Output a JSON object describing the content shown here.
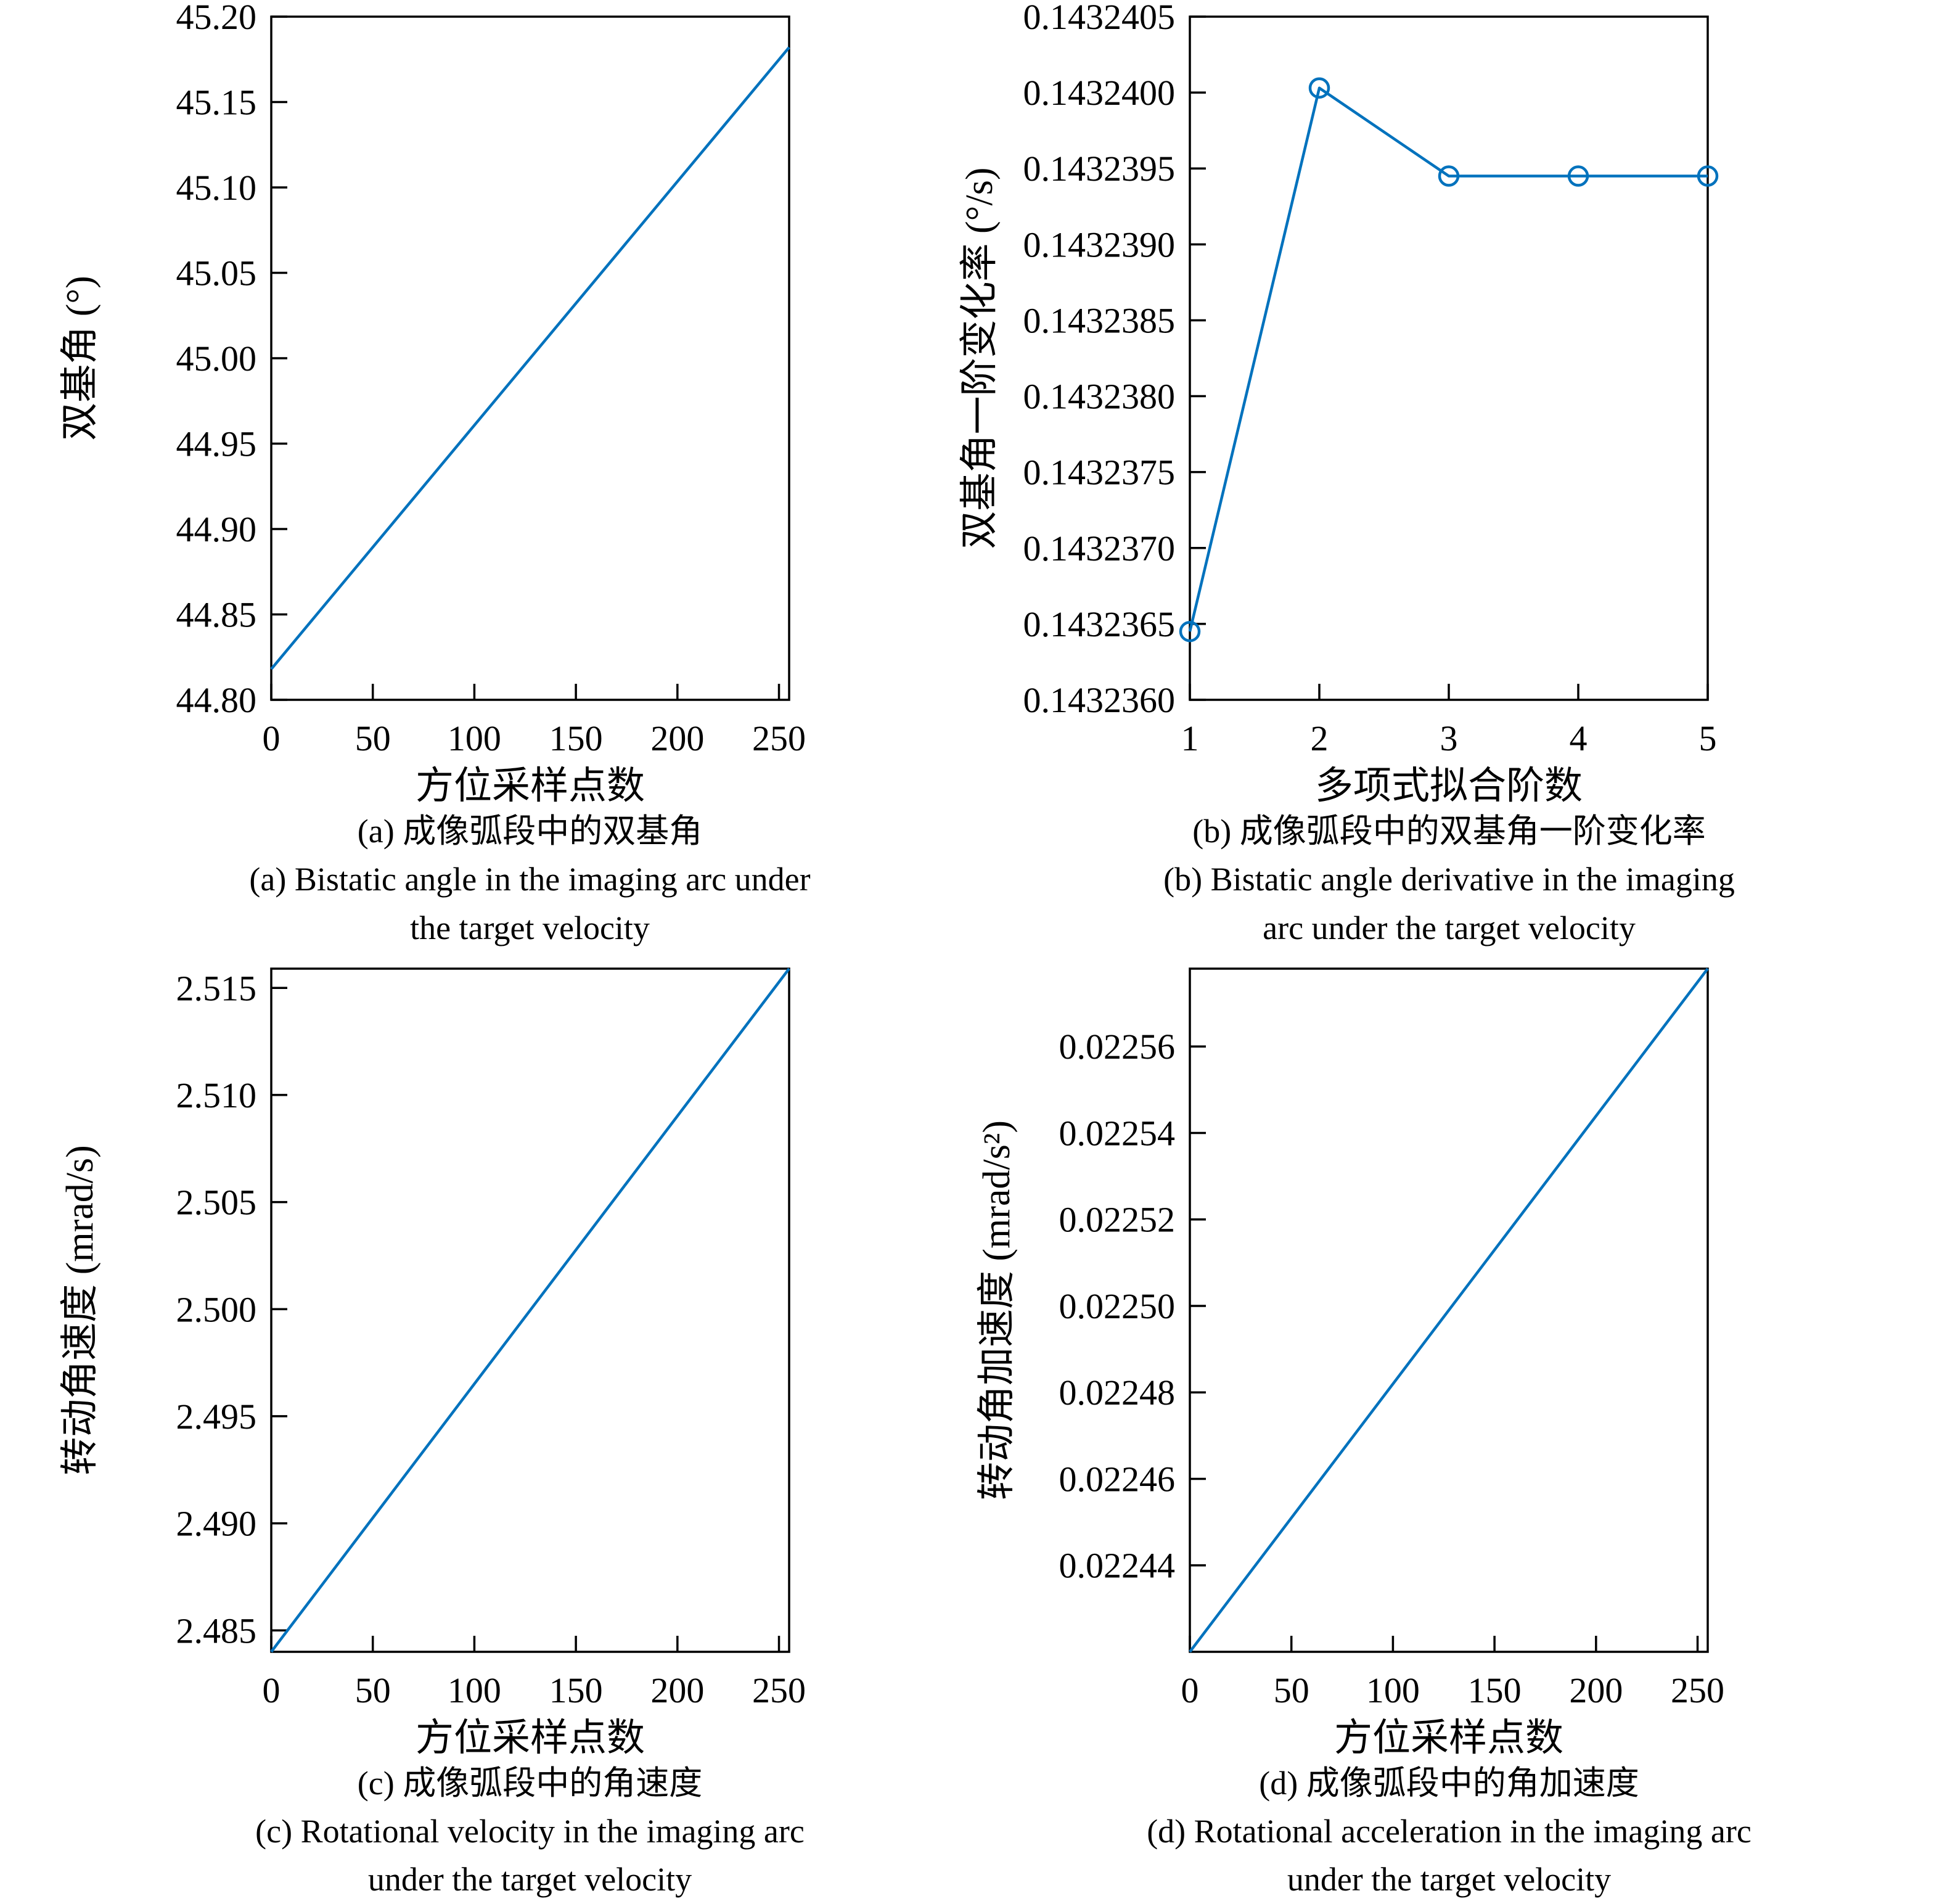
{
  "figure": {
    "background": "#ffffff",
    "accent_color": "#0072BD",
    "axis_color": "#000000"
  },
  "chart_data": [
    {
      "id": "a",
      "type": "line",
      "title": "",
      "xlabel": "方位采样点数",
      "ylabel": "双基角 (°)",
      "xlim": [
        0,
        255
      ],
      "ylim": [
        44.8,
        45.2
      ],
      "grid": false,
      "legend": null,
      "color": "#0072BD",
      "xticks": [
        {
          "v": 0,
          "label": "0"
        },
        {
          "v": 50,
          "label": "50"
        },
        {
          "v": 100,
          "label": "100"
        },
        {
          "v": 150,
          "label": "150"
        },
        {
          "v": 200,
          "label": "200"
        },
        {
          "v": 250,
          "label": "250"
        }
      ],
      "yticks": [
        {
          "v": 44.8,
          "label": "44.80"
        },
        {
          "v": 44.85,
          "label": "44.85"
        },
        {
          "v": 44.9,
          "label": "44.90"
        },
        {
          "v": 44.95,
          "label": "44.95"
        },
        {
          "v": 45.0,
          "label": "45.00"
        },
        {
          "v": 45.05,
          "label": "45.05"
        },
        {
          "v": 45.1,
          "label": "45.10"
        },
        {
          "v": 45.15,
          "label": "45.15"
        },
        {
          "v": 45.2,
          "label": "45.20"
        }
      ],
      "series": [
        {
          "name": "bistatic_angle",
          "marker": "none",
          "x": [
            0,
            255
          ],
          "y": [
            44.818,
            45.182
          ]
        }
      ],
      "captions": [
        "(a) 成像弧段中的双基角",
        "(a) Bistatic angle in the imaging arc under",
        "the target velocity"
      ]
    },
    {
      "id": "b",
      "type": "line",
      "title": "",
      "xlabel": "多项式拟合阶数",
      "ylabel": "双基角一阶变化率 (°/s)",
      "xlim": [
        1,
        5
      ],
      "ylim": [
        0.143236,
        0.1432405
      ],
      "grid": false,
      "legend": null,
      "color": "#0072BD",
      "xticks": [
        {
          "v": 1,
          "label": "1"
        },
        {
          "v": 2,
          "label": "2"
        },
        {
          "v": 3,
          "label": "3"
        },
        {
          "v": 4,
          "label": "4"
        },
        {
          "v": 5,
          "label": "5"
        }
      ],
      "yticks": [
        {
          "v": 0.143236,
          "label": "0.1432360"
        },
        {
          "v": 0.1432365,
          "label": "0.1432365"
        },
        {
          "v": 0.143237,
          "label": "0.1432370"
        },
        {
          "v": 0.1432375,
          "label": "0.1432375"
        },
        {
          "v": 0.143238,
          "label": "0.1432380"
        },
        {
          "v": 0.1432385,
          "label": "0.1432385"
        },
        {
          "v": 0.143239,
          "label": "0.1432390"
        },
        {
          "v": 0.1432395,
          "label": "0.1432395"
        },
        {
          "v": 0.14324,
          "label": "0.1432400"
        },
        {
          "v": 0.1432405,
          "label": "0.1432405"
        }
      ],
      "series": [
        {
          "name": "bistatic_angle_derivative",
          "marker": "circle",
          "x": [
            1,
            2,
            3,
            4,
            5
          ],
          "y": [
            0.14323645,
            0.14324003,
            0.14323945,
            0.14323945,
            0.14323945
          ]
        }
      ],
      "captions": [
        "(b) 成像弧段中的双基角一阶变化率",
        "(b) Bistatic angle derivative in the imaging",
        "arc under the target velocity"
      ]
    },
    {
      "id": "c",
      "type": "line",
      "title": "",
      "xlabel": "方位采样点数",
      "ylabel": "转动角速度 (mrad/s)",
      "xlim": [
        0,
        255
      ],
      "ylim": [
        2.484,
        2.5159
      ],
      "grid": false,
      "legend": null,
      "color": "#0072BD",
      "xticks": [
        {
          "v": 0,
          "label": "0"
        },
        {
          "v": 50,
          "label": "50"
        },
        {
          "v": 100,
          "label": "100"
        },
        {
          "v": 150,
          "label": "150"
        },
        {
          "v": 200,
          "label": "200"
        },
        {
          "v": 250,
          "label": "250"
        }
      ],
      "yticks": [
        {
          "v": 2.485,
          "label": "2.485"
        },
        {
          "v": 2.49,
          "label": "2.490"
        },
        {
          "v": 2.495,
          "label": "2.495"
        },
        {
          "v": 2.5,
          "label": "2.500"
        },
        {
          "v": 2.505,
          "label": "2.505"
        },
        {
          "v": 2.51,
          "label": "2.510"
        },
        {
          "v": 2.515,
          "label": "2.515"
        }
      ],
      "series": [
        {
          "name": "rotational_velocity",
          "marker": "none",
          "x": [
            0,
            255
          ],
          "y": [
            2.484,
            2.5159
          ]
        }
      ],
      "captions": [
        "(c) 成像弧段中的角速度",
        "(c) Rotational velocity in the imaging arc",
        "under the target velocity"
      ]
    },
    {
      "id": "d",
      "type": "line",
      "title": "",
      "xlabel": "方位采样点数",
      "ylabel": "转动角加速度 (mrad/s²)",
      "xlim": [
        0,
        255
      ],
      "ylim": [
        0.02242,
        0.022578
      ],
      "grid": false,
      "legend": null,
      "color": "#0072BD",
      "xticks": [
        {
          "v": 0,
          "label": "0"
        },
        {
          "v": 50,
          "label": "50"
        },
        {
          "v": 100,
          "label": "100"
        },
        {
          "v": 150,
          "label": "150"
        },
        {
          "v": 200,
          "label": "200"
        },
        {
          "v": 250,
          "label": "250"
        }
      ],
      "yticks": [
        {
          "v": 0.02244,
          "label": "0.02244"
        },
        {
          "v": 0.02246,
          "label": "0.02246"
        },
        {
          "v": 0.02248,
          "label": "0.02248"
        },
        {
          "v": 0.0225,
          "label": "0.02250"
        },
        {
          "v": 0.02252,
          "label": "0.02252"
        },
        {
          "v": 0.02254,
          "label": "0.02254"
        },
        {
          "v": 0.02256,
          "label": "0.02256"
        }
      ],
      "series": [
        {
          "name": "rotational_acceleration",
          "marker": "none",
          "x": [
            0,
            255
          ],
          "y": [
            0.02242,
            0.022578
          ]
        }
      ],
      "captions": [
        "(d) 成像弧段中的角加速度",
        "(d) Rotational acceleration in the imaging arc",
        "under the target velocity"
      ]
    }
  ]
}
